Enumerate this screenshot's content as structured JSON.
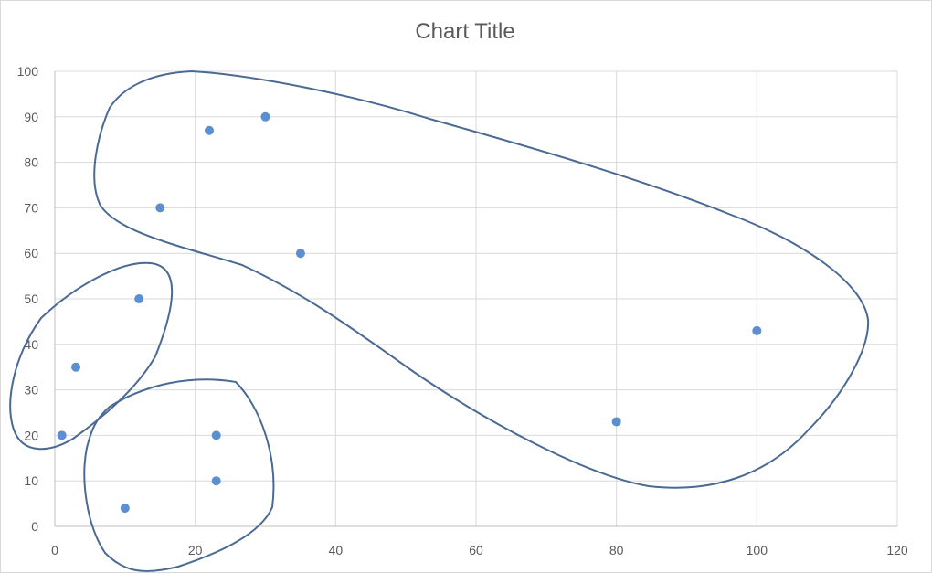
{
  "chart_data": {
    "type": "scatter",
    "title": "Chart Title",
    "xlabel": "",
    "ylabel": "",
    "xlim": [
      0,
      120
    ],
    "ylim": [
      0,
      100
    ],
    "x_ticks": [
      0,
      20,
      40,
      60,
      80,
      100,
      120
    ],
    "y_ticks": [
      0,
      10,
      20,
      30,
      40,
      50,
      60,
      70,
      80,
      90,
      100
    ],
    "grid": true,
    "legend": "none",
    "marker_color": "#5b8fd1",
    "annotation_color": "#4a6a94",
    "series": [
      {
        "points": [
          {
            "x": 1,
            "y": 20
          },
          {
            "x": 3,
            "y": 35
          },
          {
            "x": 10,
            "y": 4
          },
          {
            "x": 12,
            "y": 50
          },
          {
            "x": 15,
            "y": 70
          },
          {
            "x": 22,
            "y": 87
          },
          {
            "x": 23,
            "y": 10
          },
          {
            "x": 23,
            "y": 20
          },
          {
            "x": 30,
            "y": 90
          },
          {
            "x": 35,
            "y": 60
          },
          {
            "x": 80,
            "y": 23
          },
          {
            "x": 100,
            "y": 43
          }
        ]
      }
    ],
    "annotations": [
      {
        "type": "freehand-outline",
        "encloses": [
          {
            "x": 1,
            "y": 20
          },
          {
            "x": 3,
            "y": 35
          },
          {
            "x": 12,
            "y": 50
          }
        ]
      },
      {
        "type": "freehand-outline",
        "encloses": [
          {
            "x": 10,
            "y": 4
          },
          {
            "x": 23,
            "y": 10
          },
          {
            "x": 23,
            "y": 20
          }
        ]
      },
      {
        "type": "freehand-outline",
        "encloses": [
          {
            "x": 15,
            "y": 70
          },
          {
            "x": 22,
            "y": 87
          },
          {
            "x": 30,
            "y": 90
          },
          {
            "x": 35,
            "y": 60
          },
          {
            "x": 80,
            "y": 23
          },
          {
            "x": 100,
            "y": 43
          }
        ]
      }
    ]
  }
}
